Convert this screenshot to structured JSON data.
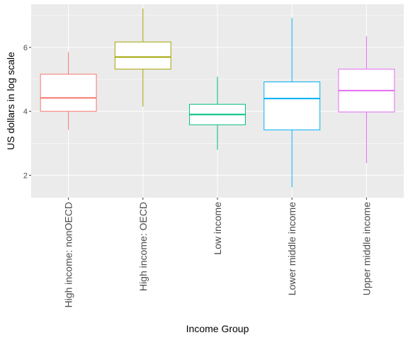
{
  "chart_data": {
    "type": "boxplot",
    "xlabel": "Income Group",
    "ylabel": "US dollars in log scale",
    "ylim": [
      1.3,
      7.35
    ],
    "yticks": [
      2,
      4,
      6
    ],
    "ytick_labels": [
      "2",
      "4",
      "6"
    ],
    "grid": true,
    "background": "#ebebeb",
    "categories": [
      "High income: nonOECD",
      "High income: OECD",
      "Low income",
      "Lower middle income",
      "Upper middle income"
    ],
    "series": [
      {
        "category": "High income: nonOECD",
        "color": "#f8766d",
        "min": 3.42,
        "q1": 4.0,
        "median": 4.42,
        "q3": 5.16,
        "max": 5.85
      },
      {
        "category": "High income: OECD",
        "color": "#a3a500",
        "min": 4.15,
        "q1": 5.32,
        "median": 5.7,
        "q3": 6.17,
        "max": 7.22
      },
      {
        "category": "Low income",
        "color": "#00bf7d",
        "min": 2.8,
        "q1": 3.58,
        "median": 3.9,
        "q3": 4.22,
        "max": 5.08
      },
      {
        "category": "Lower middle income",
        "color": "#00b0f6",
        "min": 1.62,
        "q1": 3.42,
        "median": 4.4,
        "q3": 4.92,
        "max": 6.92
      },
      {
        "category": "Upper middle income",
        "color": "#e76bf3",
        "min": 2.38,
        "q1": 3.98,
        "median": 4.65,
        "q3": 5.32,
        "max": 6.35
      }
    ]
  }
}
